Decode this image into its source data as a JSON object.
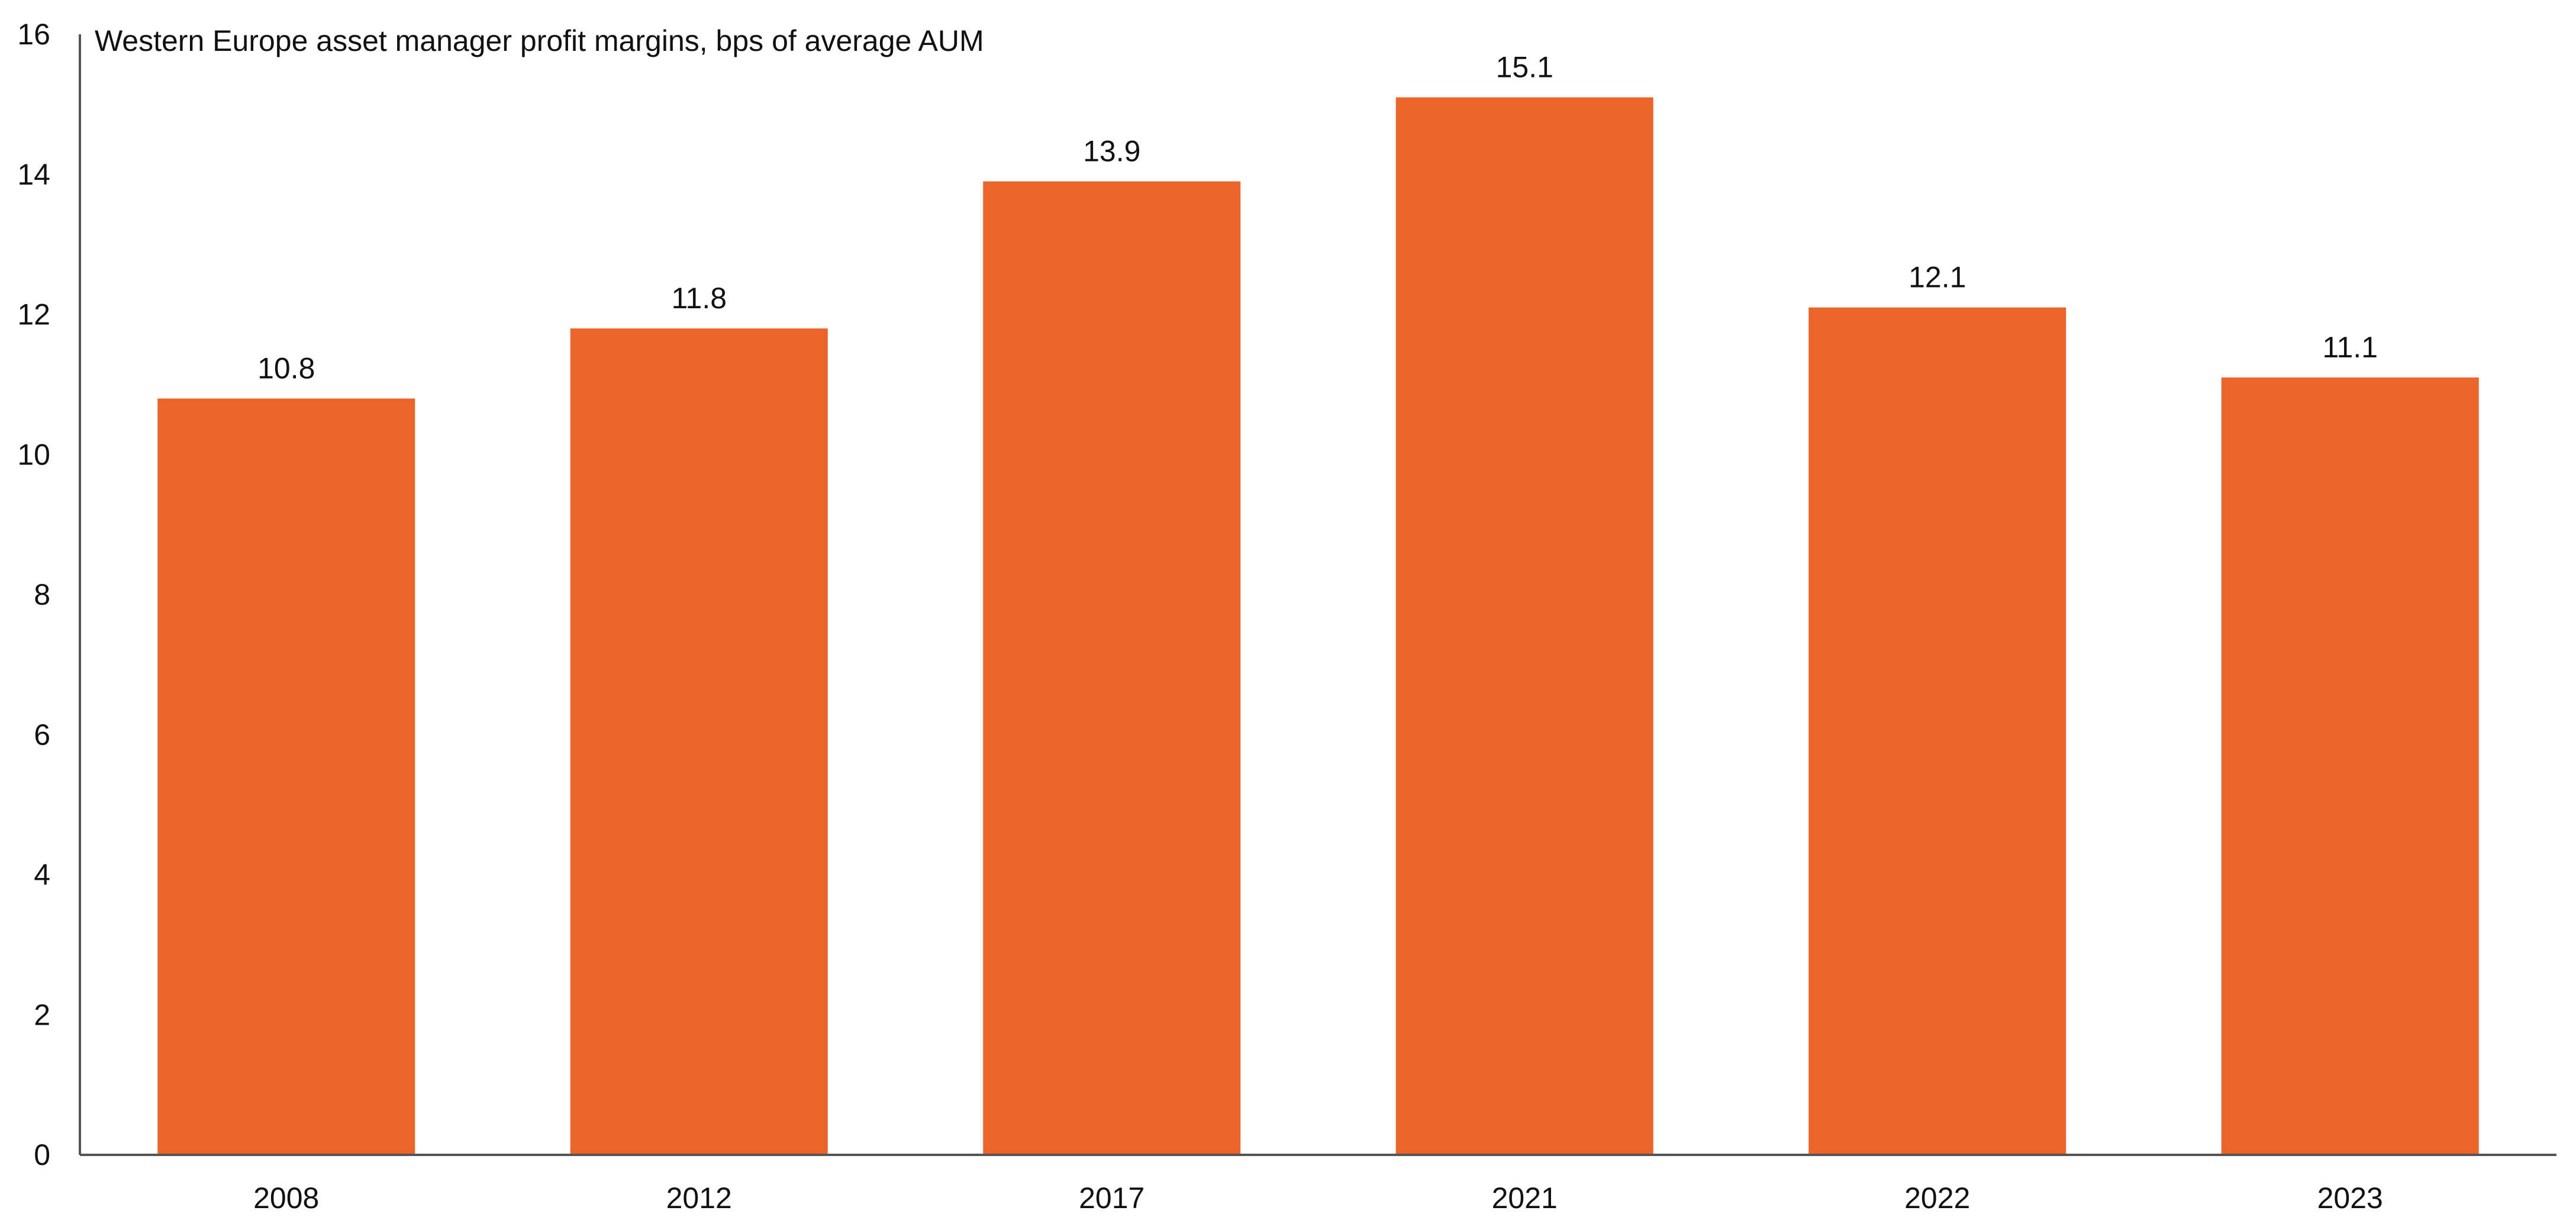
{
  "chart_data": {
    "type": "bar",
    "title": "Western Europe asset manager profit margins, bps of average AUM",
    "xlabel": "",
    "ylabel": "",
    "categories": [
      "2008",
      "2012",
      "2017",
      "2021",
      "2022",
      "2023"
    ],
    "values": [
      10.8,
      11.8,
      13.9,
      15.1,
      12.1,
      11.1
    ],
    "data_labels": [
      "10.8",
      "11.8",
      "13.9",
      "15.1",
      "12.1",
      "11.1"
    ],
    "ylim": [
      0,
      16
    ],
    "yticks": [
      0,
      2,
      4,
      6,
      8,
      10,
      12,
      14,
      16
    ],
    "ytick_labels": [
      "0",
      "2",
      "4",
      "6",
      "8",
      "10",
      "12",
      "14",
      "16"
    ],
    "grid": false,
    "legend": "none",
    "bar_color": "#EB652B",
    "axis_color": "#555555",
    "text_color": "#111111"
  }
}
